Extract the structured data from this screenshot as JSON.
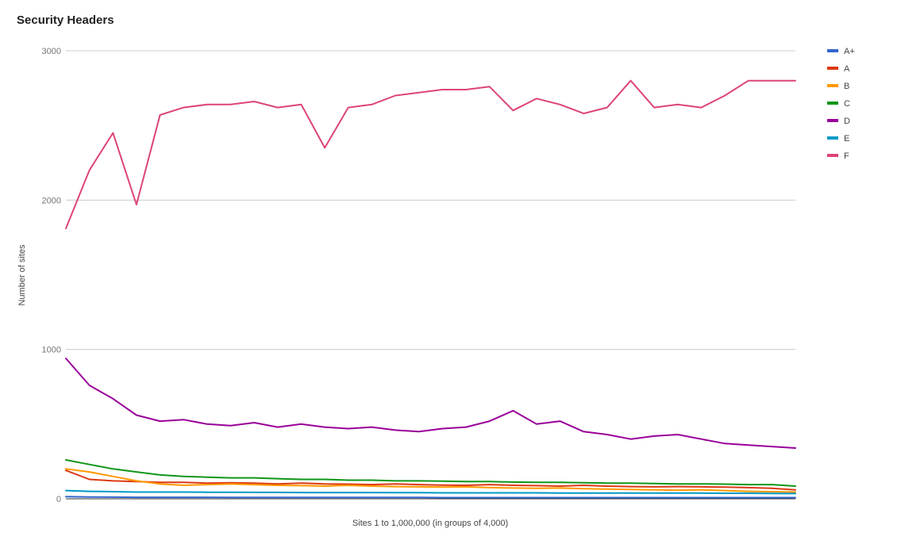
{
  "chart_data": {
    "type": "line",
    "title": "Security Headers",
    "xlabel": "Sites 1 to 1,000,000 (in groups of 4,000)",
    "ylabel": "Number of sites",
    "ylim": [
      0,
      3000
    ],
    "yticks": [
      0,
      1000,
      2000,
      3000
    ],
    "ytick_labels": [
      "0",
      "1000",
      "2000",
      "3000"
    ],
    "grid": true,
    "legend_position": "right",
    "x": [
      1,
      9,
      17,
      25,
      33,
      41,
      49,
      57,
      65,
      73,
      81,
      89,
      97,
      105,
      113,
      121,
      129,
      137,
      145,
      153,
      161,
      169,
      177,
      185,
      193,
      201,
      209,
      217,
      225,
      233,
      241,
      249
    ],
    "series": [
      {
        "name": "A+",
        "color": "#3366cc",
        "values": [
          15,
          12,
          11,
          10,
          10,
          10,
          10,
          9,
          9,
          9,
          9,
          9,
          9,
          9,
          9,
          9,
          8,
          8,
          8,
          8,
          8,
          8,
          8,
          8,
          8,
          8,
          8,
          8,
          8,
          8,
          8,
          8
        ]
      },
      {
        "name": "A",
        "color": "#dc3912",
        "values": [
          190,
          130,
          120,
          115,
          110,
          110,
          105,
          108,
          105,
          100,
          105,
          100,
          98,
          95,
          100,
          95,
          92,
          90,
          95,
          90,
          88,
          85,
          90,
          85,
          82,
          80,
          82,
          80,
          78,
          75,
          70,
          60
        ]
      },
      {
        "name": "B",
        "color": "#ff9900",
        "values": [
          200,
          180,
          150,
          120,
          100,
          90,
          95,
          100,
          95,
          90,
          88,
          85,
          90,
          85,
          82,
          80,
          78,
          80,
          75,
          72,
          70,
          72,
          68,
          65,
          62,
          60,
          58,
          60,
          55,
          50,
          48,
          45
        ]
      },
      {
        "name": "C",
        "color": "#109618",
        "values": [
          260,
          230,
          200,
          180,
          160,
          150,
          145,
          140,
          140,
          135,
          130,
          130,
          125,
          125,
          120,
          120,
          118,
          115,
          115,
          112,
          110,
          110,
          108,
          105,
          105,
          102,
          100,
          100,
          98,
          95,
          95,
          85
        ]
      },
      {
        "name": "D",
        "color": "#990099",
        "values": [
          940,
          760,
          670,
          560,
          520,
          530,
          500,
          490,
          510,
          480,
          500,
          480,
          470,
          480,
          460,
          450,
          470,
          480,
          520,
          590,
          500,
          520,
          450,
          430,
          400,
          420,
          430,
          400,
          370,
          360,
          350,
          340
        ]
      },
      {
        "name": "E",
        "color": "#0099c6",
        "values": [
          55,
          50,
          48,
          45,
          45,
          45,
          44,
          44,
          43,
          43,
          42,
          42,
          42,
          42,
          41,
          41,
          40,
          40,
          40,
          40,
          40,
          39,
          39,
          39,
          38,
          38,
          38,
          38,
          37,
          37,
          36,
          35
        ]
      },
      {
        "name": "F",
        "color": "#dd4477",
        "values": [
          1810,
          2200,
          2450,
          1970,
          2570,
          2620,
          2640,
          2640,
          2660,
          2620,
          2640,
          2350,
          2620,
          2640,
          2700,
          2720,
          2740,
          2740,
          2760,
          2600,
          2680,
          2640,
          2580,
          2620,
          2800,
          2620,
          2640,
          2620,
          2700,
          2800,
          2800,
          2800
        ]
      }
    ]
  }
}
